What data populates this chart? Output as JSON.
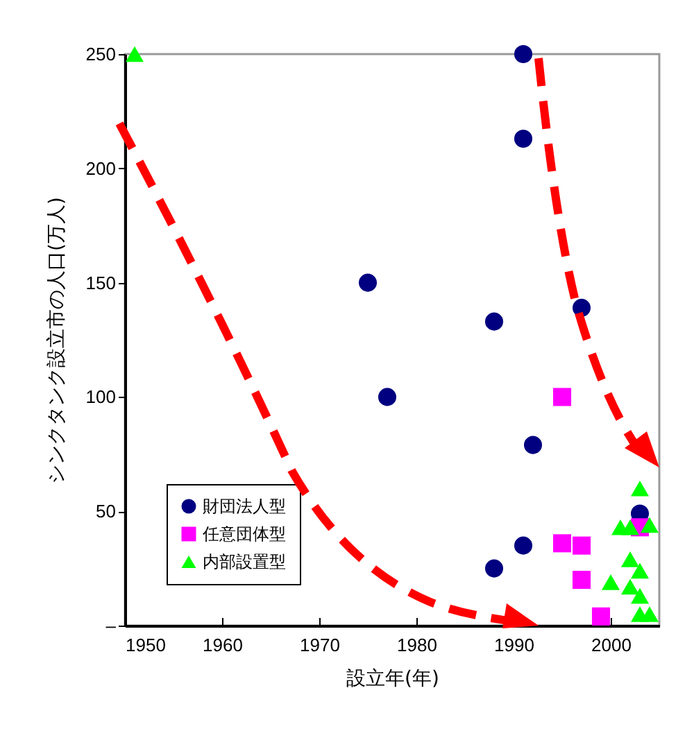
{
  "chart_data": {
    "type": "scatter",
    "xlabel": "設立年(年)",
    "ylabel": "シンクタンク設立市の人口(万人)",
    "xlim": [
      1950,
      2005
    ],
    "xticks": [
      1950,
      1960,
      1970,
      1980,
      1990,
      2000
    ],
    "ylim": [
      0,
      250
    ],
    "yticks": [
      {
        "value": 0,
        "label": "–"
      },
      50,
      100,
      150,
      200,
      250
    ],
    "grid": false,
    "legend": "bottom left",
    "series": [
      {
        "name": "財団法人型",
        "color": "#000080",
        "marker": "circle",
        "x": [
          1975,
          1977,
          1988,
          1991,
          1991,
          1997,
          1992,
          1991,
          1988,
          2003
        ],
        "values": [
          150,
          100,
          133,
          250,
          213,
          139,
          79,
          35,
          25,
          49
        ]
      },
      {
        "name": "任意団体型",
        "color": "#ff00ff",
        "marker": "square",
        "x": [
          1995,
          1995,
          1997,
          1997,
          1999,
          2003
        ],
        "values": [
          100,
          36,
          35,
          20,
          4,
          43
        ]
      },
      {
        "name": "内部設置型",
        "color": "#00ff00",
        "marker": "triangle",
        "x": [
          1951,
          2003,
          2001,
          2002,
          2004,
          2002,
          2000,
          2002,
          2003,
          2003,
          2004,
          2003
        ],
        "values": [
          250,
          60,
          43,
          43,
          44,
          29,
          19,
          17,
          24,
          13,
          5,
          5
        ]
      }
    ]
  }
}
